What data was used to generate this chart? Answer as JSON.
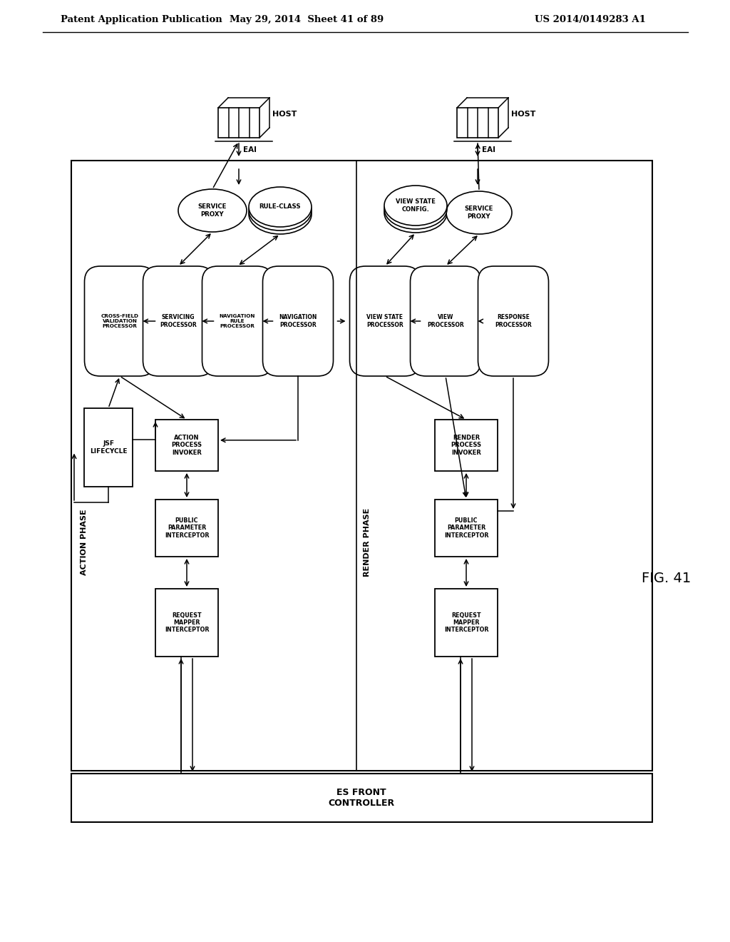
{
  "header_left": "Patent Application Publication",
  "header_mid": "May 29, 2014  Sheet 41 of 89",
  "header_right": "US 2014/0149283 A1",
  "fig_label": "FIG. 41"
}
